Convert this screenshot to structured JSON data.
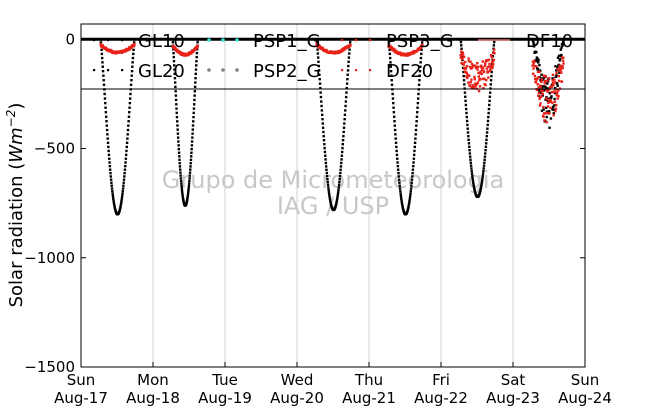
{
  "chart_data": {
    "type": "scatter",
    "ylabel_text": "Solar radiation (",
    "ylabel_unit_base": "Wm",
    "ylabel_unit_exp": "−2",
    "ylabel_close": ")",
    "ylim": [
      -1500,
      70
    ],
    "xlim": [
      "2014-08-17",
      "2014-08-24"
    ],
    "y_ticks": [
      0,
      -500,
      -1000,
      -1500
    ],
    "y_tick_labels": [
      "0",
      "−500",
      "−1000",
      "−1500"
    ],
    "x_ticks": [
      {
        "day": "Sun",
        "date": "Aug-17"
      },
      {
        "day": "Mon",
        "date": "Aug-18"
      },
      {
        "day": "Tue",
        "date": "Aug-19"
      },
      {
        "day": "Wed",
        "date": "Aug-20"
      },
      {
        "day": "Thu",
        "date": "Aug-21"
      },
      {
        "day": "Fri",
        "date": "Aug-22"
      },
      {
        "day": "Sat",
        "date": "Aug-23"
      },
      {
        "day": "Sun",
        "date": "Aug-24"
      }
    ],
    "grid": "vertical",
    "legend": {
      "placement": "top",
      "columns": 4,
      "entries": [
        {
          "label": "GL10",
          "color": "#000000",
          "marker": "dotted"
        },
        {
          "label": "PSP1_G",
          "color": "#40e0d0",
          "marker": "dot"
        },
        {
          "label": "PSP3_G",
          "color": "#e8221a",
          "marker": "dotted"
        },
        {
          "label": "DF10",
          "color": "#ff8080",
          "marker": "line"
        },
        {
          "label": "GL20",
          "color": "#000000",
          "marker": "dotted"
        },
        {
          "label": "PSP2_G",
          "color": "#808080",
          "marker": "dot"
        },
        {
          "label": "DF20",
          "color": "#e8221a",
          "marker": "dotted"
        }
      ]
    },
    "watermark": [
      "Grupo de Micrometeorologia",
      "IAG / USP"
    ],
    "series": [
      {
        "name": "GL10 / GL20",
        "color": "#000000",
        "note_days": [
          {
            "day": 0,
            "start": 0.27,
            "end": 0.74,
            "peak": -800,
            "cut": 1.0
          },
          {
            "day": 1,
            "start": 0.27,
            "end": 0.62,
            "peak": -760,
            "cut": 0.62
          },
          {
            "day": 3,
            "start": 0.27,
            "end": 0.74,
            "peak": -780,
            "cut": 1.0
          },
          {
            "day": 4,
            "start": 0.27,
            "end": 0.74,
            "peak": -800,
            "cut": 1.0
          },
          {
            "day": 5,
            "start": 0.27,
            "end": 0.74,
            "peak": -720,
            "cut": 1.0
          },
          {
            "day": 6,
            "start": 0.27,
            "end": 0.7,
            "peak": -420,
            "cut": 1.0
          }
        ]
      },
      {
        "name": "PSP3_G / DF20",
        "color": "#e8221a",
        "note_days": [
          {
            "day": 0,
            "start": 0.27,
            "end": 0.74,
            "peak": -60,
            "cut": 1.0
          },
          {
            "day": 1,
            "start": 0.27,
            "end": 0.62,
            "peak": -70,
            "cut": 0.62
          },
          {
            "day": 3,
            "start": 0.27,
            "end": 0.74,
            "peak": -60,
            "cut": 1.0
          },
          {
            "day": 4,
            "start": 0.27,
            "end": 0.74,
            "peak": -70,
            "cut": 1.0
          },
          {
            "day": 5,
            "start": 0.27,
            "end": 0.74,
            "peak": -180,
            "cut": 1.0
          },
          {
            "day": 6,
            "start": 0.27,
            "end": 0.7,
            "peak": -280,
            "cut": 1.0
          }
        ]
      }
    ]
  }
}
